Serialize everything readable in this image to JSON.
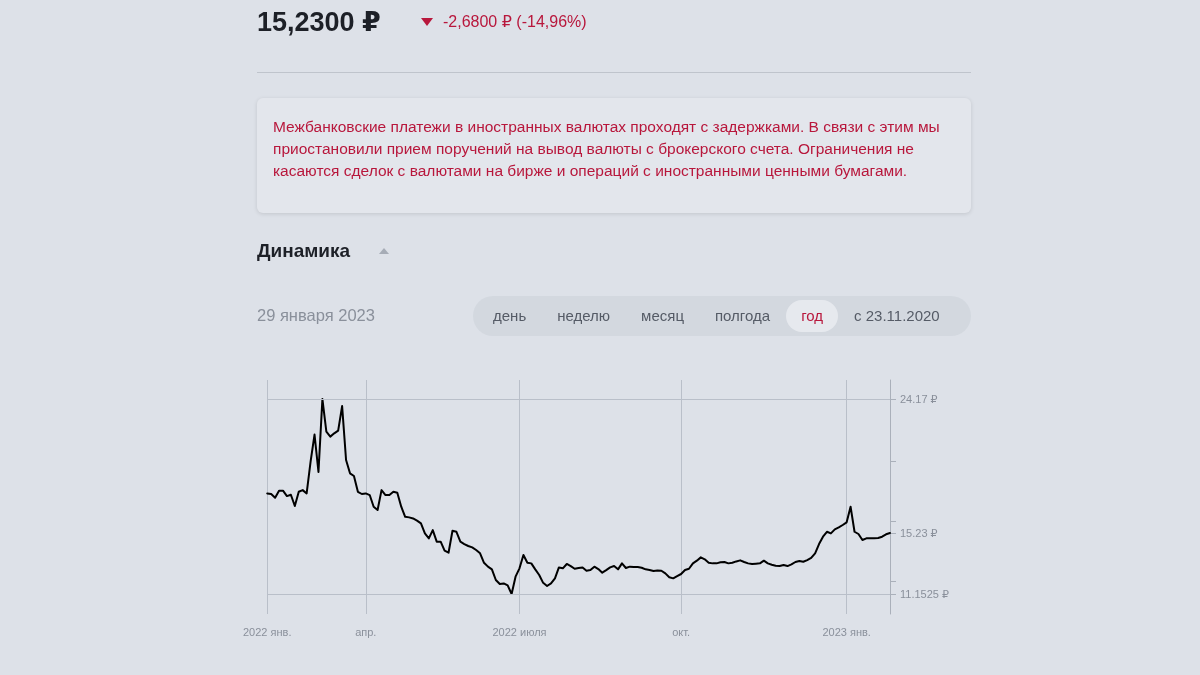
{
  "chart_data": {
    "type": "line",
    "title": "15,2300 ₽",
    "subtitle": "-2,6800 ₽ (-14,96%)",
    "annotations": [
      "Межбанковские платежи в иностранных валютах проходят с задержками. В связи с этим мы приостановили прием поручений на вывод валюты с брокерского счета. Ограничения не касаются сделок с валютами на бирже и операций с иностранными ценными бумагами.",
      "Динамика",
      "29 января 2023",
      "день",
      "неделю",
      "месяц",
      "полгода",
      "год",
      "с 23.11.2020"
    ],
    "categories": [
      "2022 янв.",
      null,
      null,
      null,
      null,
      null,
      null,
      null,
      null,
      null,
      null,
      null,
      null,
      null,
      null,
      null,
      null,
      null,
      null,
      null,
      null,
      null,
      null,
      null,
      null,
      "апр.",
      null,
      null,
      null,
      null,
      null,
      null,
      null,
      null,
      null,
      null,
      null,
      null,
      null,
      null,
      null,
      null,
      null,
      null,
      null,
      null,
      null,
      null,
      null,
      null,
      null,
      null,
      null,
      null,
      null,
      null,
      null,
      null,
      null,
      null,
      null,
      null,
      null,
      null,
      "2022 июля",
      null,
      null,
      null,
      null,
      null,
      null,
      null,
      null,
      null,
      null,
      null,
      null,
      null,
      null,
      null,
      null,
      null,
      null,
      null,
      null,
      null,
      null,
      null,
      null,
      null,
      null,
      null,
      null,
      null,
      null,
      null,
      null,
      null,
      null,
      null,
      null,
      null,
      null,
      null,
      null,
      "окт.",
      null,
      null,
      null,
      null,
      null,
      null,
      null,
      null,
      null,
      null,
      null,
      null,
      null,
      null,
      null,
      null,
      null,
      null,
      null,
      null,
      null,
      null,
      null,
      null,
      null,
      null,
      null,
      null,
      null,
      null,
      null,
      null,
      null,
      null,
      null,
      null,
      null,
      null,
      null,
      null,
      null,
      "2023 янв.",
      null,
      null,
      null,
      null,
      null,
      null,
      null,
      null,
      null,
      null,
      null
    ],
    "series": [
      {
        "color": "#000000",
        "values": [
          17.87,
          17.83,
          17.58,
          18.05,
          18.05,
          17.69,
          17.78,
          17.03,
          17.98,
          18.09,
          17.87,
          19.99,
          21.8,
          19.3,
          24.17,
          21.99,
          21.66,
          21.88,
          22.06,
          23.7,
          20.1,
          19.21,
          19.03,
          17.98,
          17.83,
          17.87,
          17.76,
          16.98,
          16.76,
          18.09,
          17.76,
          17.76,
          17.98,
          17.92,
          16.98,
          16.31,
          16.27,
          16.2,
          16.05,
          15.87,
          15.2,
          14.87,
          15.42,
          14.65,
          14.65,
          14.05,
          13.91,
          15.38,
          15.31,
          14.65,
          14.49,
          14.36,
          14.27,
          14.09,
          13.87,
          13.24,
          12.98,
          12.8,
          12.09,
          11.82,
          11.86,
          11.73,
          11.1525,
          12.31,
          12.87,
          13.76,
          13.24,
          13.2,
          12.8,
          12.42,
          11.9,
          11.69,
          11.86,
          12.2,
          12.93,
          12.87,
          13.16,
          13.02,
          12.84,
          12.89,
          12.93,
          12.71,
          12.75,
          12.98,
          12.82,
          12.58,
          12.75,
          12.93,
          13.02,
          12.8,
          13.2,
          12.89,
          12.98,
          12.96,
          12.96,
          12.91,
          12.8,
          12.76,
          12.69,
          12.73,
          12.71,
          12.53,
          12.27,
          12.2,
          12.35,
          12.49,
          12.76,
          12.84,
          13.2,
          13.38,
          13.6,
          13.47,
          13.24,
          13.2,
          13.2,
          13.27,
          13.29,
          13.2,
          13.24,
          13.33,
          13.4,
          13.29,
          13.2,
          13.16,
          13.18,
          13.2,
          13.38,
          13.2,
          13.11,
          13.04,
          13.02,
          13.09,
          13.02,
          13.13,
          13.29,
          13.36,
          13.31,
          13.42,
          13.56,
          13.87,
          14.49,
          14.98,
          15.31,
          15.2,
          15.47,
          15.6,
          15.76,
          15.94,
          16.98,
          15.31,
          15.16,
          14.76,
          14.87,
          14.87,
          14.87,
          14.89,
          14.98,
          15.14,
          15.23
        ]
      }
    ],
    "ylim": [
      9.82,
      25.44
    ],
    "yticks": [
      {
        "value": 11.1525,
        "label": "11.1525 ₽"
      },
      {
        "value": 12,
        "label": null
      },
      {
        "value": 15.23,
        "label": "15.23 ₽"
      },
      {
        "value": 16,
        "label": null
      },
      {
        "value": 20,
        "label": null
      },
      {
        "value": 24.17,
        "label": "24.17 ₽"
      }
    ],
    "ref_lines": [
      {
        "axis": "y",
        "value": 24.17,
        "color": "#b9bfc9"
      },
      {
        "axis": "y",
        "value": 11.1525,
        "color": "#b9bfc9"
      }
    ],
    "grid": "x",
    "marker": "none",
    "line_style": "solid"
  }
}
